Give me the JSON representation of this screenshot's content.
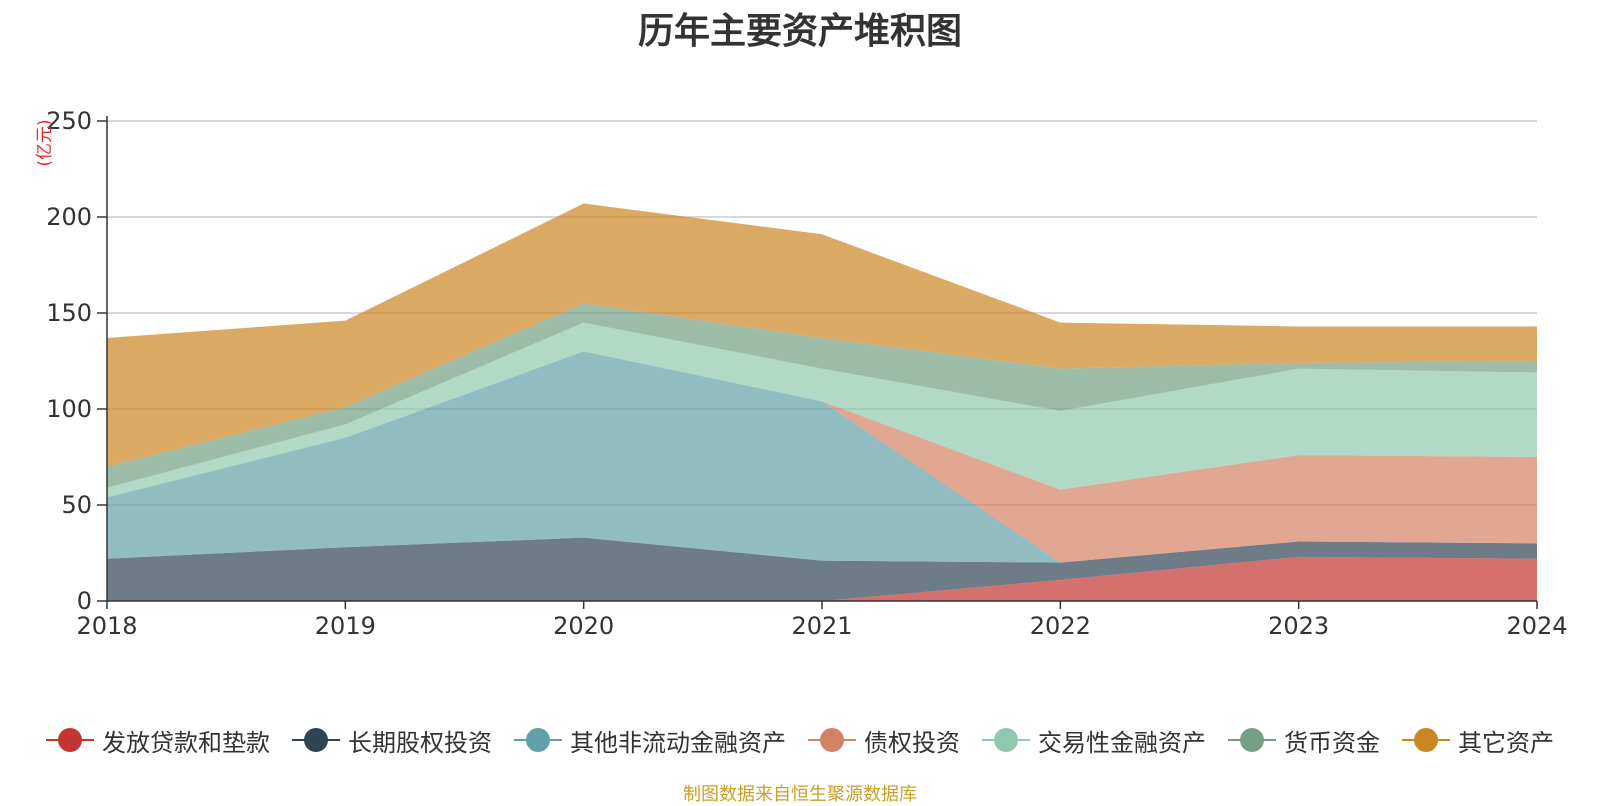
{
  "chart_data": {
    "type": "area",
    "stacked": true,
    "title": "历年主要资产堆积图",
    "unit_label": "(亿元)",
    "xlabel": "",
    "ylabel": "(亿元)",
    "x": [
      "2018",
      "2019",
      "2020",
      "2021",
      "2022",
      "2023",
      "2024"
    ],
    "ylim": [
      0,
      250
    ],
    "yticks": [
      0,
      50,
      100,
      150,
      200,
      250
    ],
    "grid": true,
    "legend_position": "bottom",
    "series": [
      {
        "name": "发放贷款和垫款",
        "color": "#c23531",
        "values": [
          0,
          0,
          0,
          0,
          11,
          23,
          22
        ]
      },
      {
        "name": "长期股权投资",
        "color": "#2f4554",
        "values": [
          22,
          28,
          33,
          21,
          9,
          8,
          8
        ]
      },
      {
        "name": "其他非流动金融资产",
        "color": "#61a0a8",
        "values": [
          32,
          57,
          97,
          83,
          0,
          0,
          0
        ]
      },
      {
        "name": "债权投资",
        "color": "#d48265",
        "values": [
          0,
          0,
          0,
          0,
          38,
          45,
          45
        ]
      },
      {
        "name": "交易性金融资产",
        "color": "#91c7ae",
        "values": [
          5,
          7,
          15,
          17,
          41,
          45,
          44
        ]
      },
      {
        "name": "货币资金",
        "color": "#749f83",
        "values": [
          11,
          9,
          10,
          16,
          22,
          3,
          6
        ]
      },
      {
        "name": "其它资产",
        "color": "#ca8622",
        "values": [
          67,
          45,
          52,
          54,
          24,
          19,
          18
        ]
      }
    ]
  },
  "source_note": "制图数据来自恒生聚源数据库"
}
